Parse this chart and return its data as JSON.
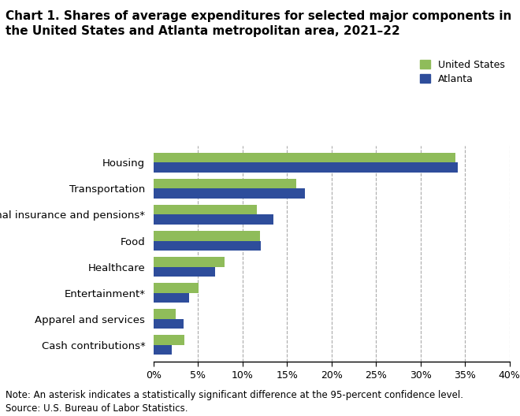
{
  "title": "Chart 1. Shares of average expenditures for selected major components in\nthe United States and Atlanta metropolitan area, 2021–22",
  "categories": [
    "Housing",
    "Transportation",
    "Personal insurance and pensions*",
    "Food",
    "Healthcare",
    "Entertainment*",
    "Apparel and services",
    "Cash contributions*"
  ],
  "us_values": [
    33.9,
    16.0,
    11.6,
    12.0,
    8.0,
    5.1,
    2.5,
    3.5
  ],
  "atlanta_values": [
    34.2,
    17.0,
    13.5,
    12.1,
    6.9,
    4.0,
    3.4,
    2.1
  ],
  "us_color": "#8fbc5a",
  "atlanta_color": "#2e4d9b",
  "xlim": [
    0,
    40
  ],
  "xticks": [
    0,
    5,
    10,
    15,
    20,
    25,
    30,
    35,
    40
  ],
  "xticklabels": [
    "0%",
    "5%",
    "10%",
    "15%",
    "20%",
    "25%",
    "30%",
    "35%",
    "40%"
  ],
  "note": "Note: An asterisk indicates a statistically significant difference at the 95-percent confidence level.",
  "source": "Source: U.S. Bureau of Labor Statistics.",
  "legend_us": "United States",
  "legend_atlanta": "Atlanta",
  "bar_height": 0.38,
  "background_color": "#ffffff",
  "grid_color": "#aaaaaa",
  "title_fontsize": 11.0,
  "label_fontsize": 9.5,
  "tick_fontsize": 9.0,
  "note_fontsize": 8.5
}
